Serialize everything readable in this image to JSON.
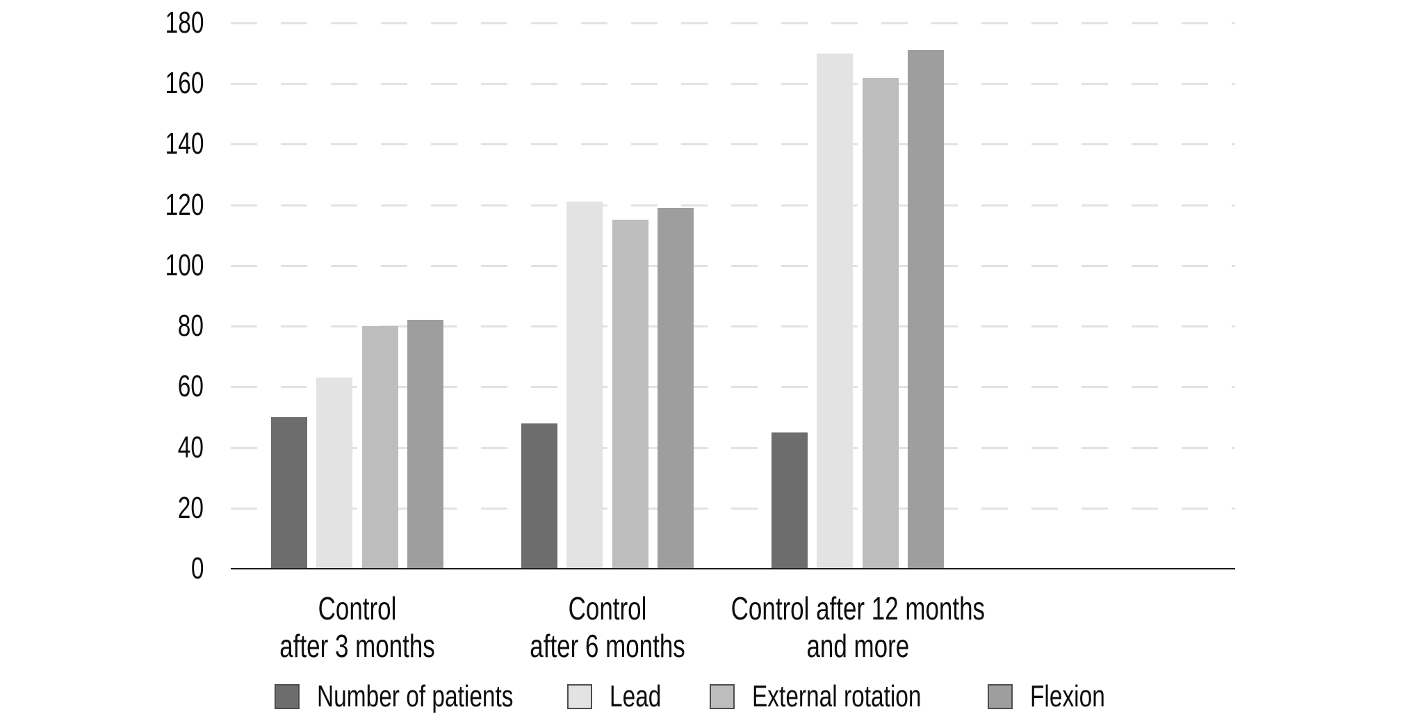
{
  "chart_data": {
    "type": "bar",
    "title": "",
    "categories": [
      [
        "Control",
        "after 3 months"
      ],
      [
        "Control",
        "after 6 months"
      ],
      [
        "Control after 12 months",
        "and more"
      ]
    ],
    "series": [
      {
        "name": "Number of patients",
        "color": "#6d6d6d",
        "values": [
          50,
          48,
          45
        ]
      },
      {
        "name": "Lead",
        "color": "#e3e3e3",
        "values": [
          63,
          121,
          170
        ]
      },
      {
        "name": "External rotation",
        "color": "#bdbdbd",
        "values": [
          80,
          115,
          162
        ]
      },
      {
        "name": "Flexion",
        "color": "#9e9e9e",
        "values": [
          82,
          119,
          171
        ]
      }
    ],
    "xlabel": "",
    "ylabel": "",
    "ylim": [
      0,
      180
    ],
    "yticks": [
      0,
      20,
      40,
      60,
      80,
      100,
      120,
      140,
      160,
      180
    ],
    "grid": "horizontal-dashed",
    "gridline_color": "#e2e2e2",
    "axis_color": "#1a1a1a",
    "text_color": "#0d0d0d",
    "background_color": "#ffffff",
    "legend_position": "bottom",
    "legend": [
      "Number of patients",
      "Lead",
      "External rotation",
      "Flexion"
    ]
  }
}
